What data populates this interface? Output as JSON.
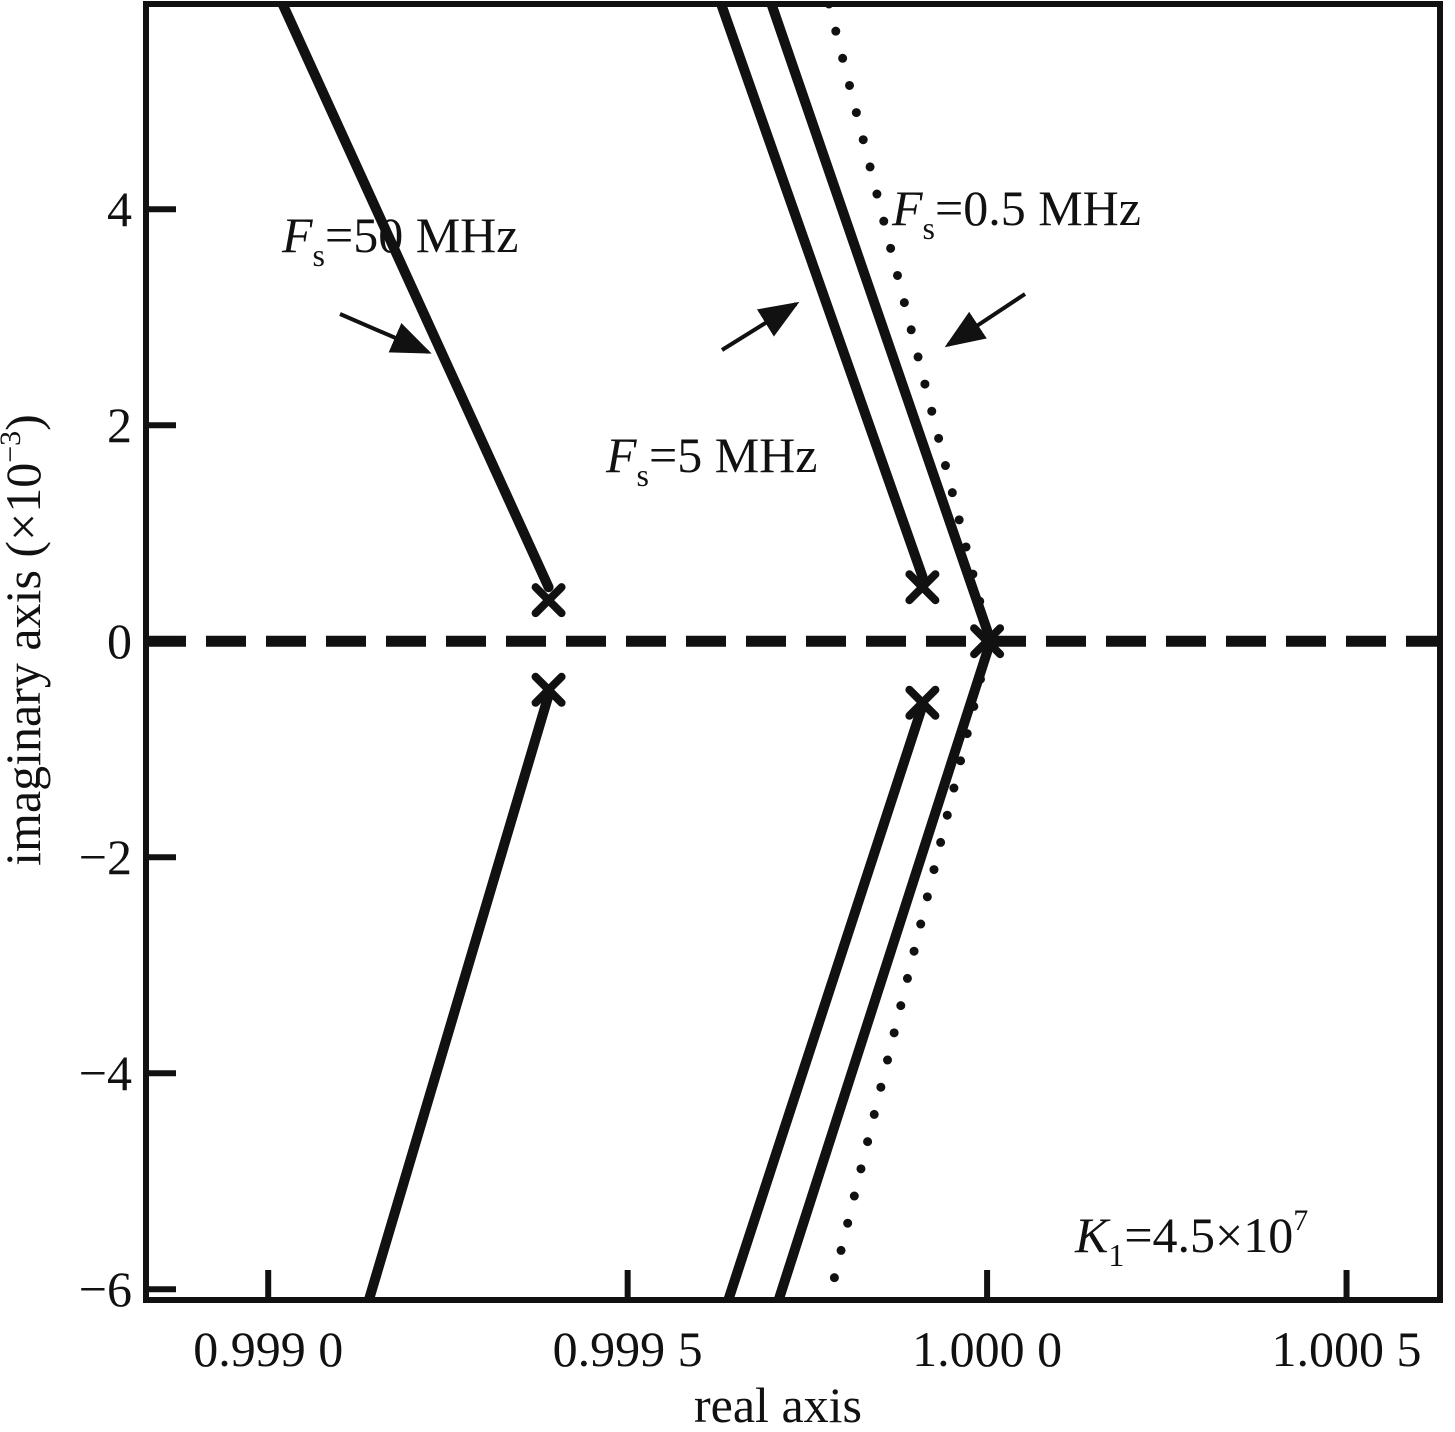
{
  "chart_data": {
    "type": "scatter",
    "title": "",
    "xlabel": "real axis",
    "ylabel_main": "imaginary axis (×10",
    "ylabel_exp": "−3",
    "ylabel_close": ")",
    "xlim": [
      0.99883,
      1.00063
    ],
    "ylim": [
      -6.1,
      5.9
    ],
    "x_ticks": [
      {
        "value": 0.999,
        "label": "0.999 0"
      },
      {
        "value": 0.9995,
        "label": "0.999 5"
      },
      {
        "value": 1.0,
        "label": "1.000 0"
      },
      {
        "value": 1.0005,
        "label": "1.000 5"
      }
    ],
    "y_ticks": [
      {
        "value": 4,
        "label": "4"
      },
      {
        "value": 2,
        "label": "2"
      },
      {
        "value": 0,
        "label": "0"
      },
      {
        "value": -2,
        "label": "−2"
      },
      {
        "value": -4,
        "label": "−4"
      },
      {
        "value": -6,
        "label": "−6"
      }
    ],
    "grid": false,
    "real_axis_line": {
      "y": 0,
      "style": "dashed"
    },
    "series": [
      {
        "label_main": "F",
        "label_sub": "s",
        "label_rest": "=50 MHz",
        "style": "solid",
        "upper": [
          [
            0.99902,
            5.9
          ],
          [
            0.99939,
            0.5
          ]
        ],
        "lower": [
          [
            0.99939,
            -0.5
          ],
          [
            0.99914,
            -6.1
          ]
        ],
        "poles": [
          [
            0.99939,
            0.38
          ],
          [
            0.99939,
            -0.45
          ]
        ]
      },
      {
        "label_main": "F",
        "label_sub": "s",
        "label_rest": "=5 MHz",
        "style": "solid",
        "upper": [
          [
            0.99963,
            5.9
          ],
          [
            0.99991,
            0.6
          ]
        ],
        "lower": [
          [
            0.99991,
            -0.6
          ],
          [
            0.99964,
            -6.1
          ]
        ],
        "poles": [
          [
            0.99991,
            0.5
          ],
          [
            0.99991,
            -0.57
          ]
        ]
      },
      {
        "label_main": "F",
        "label_sub": "s",
        "label_rest": "=0.5 MHz",
        "style": "solid",
        "upper": [
          [
            0.9997,
            5.9
          ],
          [
            1.0,
            0.1
          ]
        ],
        "lower": [
          [
            1.0,
            -0.1
          ],
          [
            0.99971,
            -6.1
          ]
        ],
        "poles": [
          [
            1.0,
            0.0
          ]
        ]
      },
      {
        "label_main": "",
        "label_sub": "",
        "label_rest": "",
        "style": "dotted",
        "upper": [
          [
            0.99978,
            5.9
          ],
          [
            1.0,
            0.1
          ]
        ],
        "lower": [
          [
            1.0,
            -0.1
          ],
          [
            0.99978,
            -6.1
          ]
        ],
        "poles": []
      }
    ],
    "annotation": {
      "main": "K",
      "sub": "1",
      "rest": "=4.5×10",
      "sup": "7"
    }
  }
}
